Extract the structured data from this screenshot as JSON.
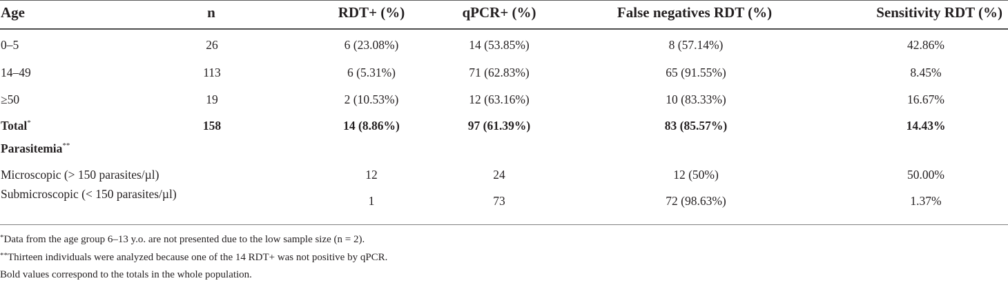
{
  "table": {
    "headers": [
      "Age",
      "n",
      "RDT+ (%)",
      "qPCR+ (%)",
      "False negatives RDT (%)",
      "Sensitivity RDT (%)"
    ],
    "age_rows": [
      {
        "age": "0–5",
        "n": "26",
        "rdt": "6 (23.08%)",
        "qpcr": "14 (53.85%)",
        "false_neg": "8 (57.14%)",
        "sensitivity": "42.86%"
      },
      {
        "age": "14–49",
        "n": "113",
        "rdt": "6 (5.31%)",
        "qpcr": "71 (62.83%)",
        "false_neg": "65 (91.55%)",
        "sensitivity": "8.45%"
      },
      {
        "age": "≥50",
        "n": "19",
        "rdt": "2 (10.53%)",
        "qpcr": "12 (63.16%)",
        "false_neg": "10 (83.33%)",
        "sensitivity": "16.67%"
      }
    ],
    "total_row": {
      "age": "Total",
      "age_mark": "*",
      "n": "158",
      "rdt": "14 (8.86%)",
      "qpcr": "97 (61.39%)",
      "false_neg": "83 (85.57%)",
      "sensitivity": "14.43%"
    },
    "parasitemia_label": "Parasitemia",
    "parasitemia_mark": "**",
    "parasitemia_rows": [
      {
        "label": "Microscopic (> 150 parasites/µl)",
        "rdt": "12",
        "qpcr": "24",
        "false_neg": "12 (50%)",
        "sensitivity": "50.00%"
      },
      {
        "label": "Submicroscopic (< 150 parasites/µl)",
        "rdt": "1",
        "qpcr": "73",
        "false_neg": "72 (98.63%)",
        "sensitivity": "1.37%"
      }
    ]
  },
  "footnotes": [
    {
      "mark": "*",
      "text": "Data from the age group 6–13 y.o. are not presented due to the low sample size (n = 2)."
    },
    {
      "mark": "**",
      "text": "Thirteen individuals were analyzed because one of the 14 RDT+ was not positive by qPCR."
    },
    {
      "mark": "",
      "text": "Bold values correspond to the totals in the whole population."
    }
  ]
}
